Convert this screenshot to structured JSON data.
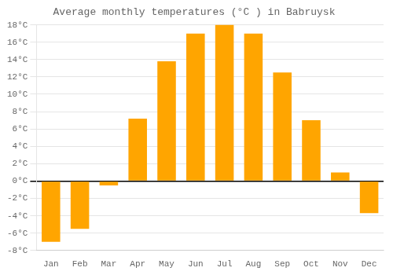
{
  "chart_data": {
    "type": "bar",
    "title": "Average monthly temperatures (°C ) in Babruysk",
    "categories": [
      "Jan",
      "Feb",
      "Mar",
      "Apr",
      "May",
      "Jun",
      "Jul",
      "Aug",
      "Sep",
      "Oct",
      "Nov",
      "Dec"
    ],
    "values": [
      -7.0,
      -5.5,
      -0.5,
      7.2,
      13.8,
      17.0,
      18.0,
      17.0,
      12.5,
      7.0,
      1.0,
      -3.7
    ],
    "color": "#FFA500",
    "ylim": [
      -8,
      18
    ],
    "yticks": [
      {
        "value": -8,
        "label": "-8°C"
      },
      {
        "value": -6,
        "label": "-6°C"
      },
      {
        "value": -4,
        "label": "-4°C"
      },
      {
        "value": -2,
        "label": "-2°C"
      },
      {
        "value": 0,
        "label": "0°C"
      },
      {
        "value": 2,
        "label": "2°C"
      },
      {
        "value": 4,
        "label": "4°C"
      },
      {
        "value": 6,
        "label": "6°C"
      },
      {
        "value": 8,
        "label": "8°C"
      },
      {
        "value": 10,
        "label": "10°C"
      },
      {
        "value": 12,
        "label": "12°C"
      },
      {
        "value": 14,
        "label": "14°C"
      },
      {
        "value": 16,
        "label": "16°C"
      },
      {
        "value": 18,
        "label": "18°C"
      }
    ],
    "grid": true
  }
}
